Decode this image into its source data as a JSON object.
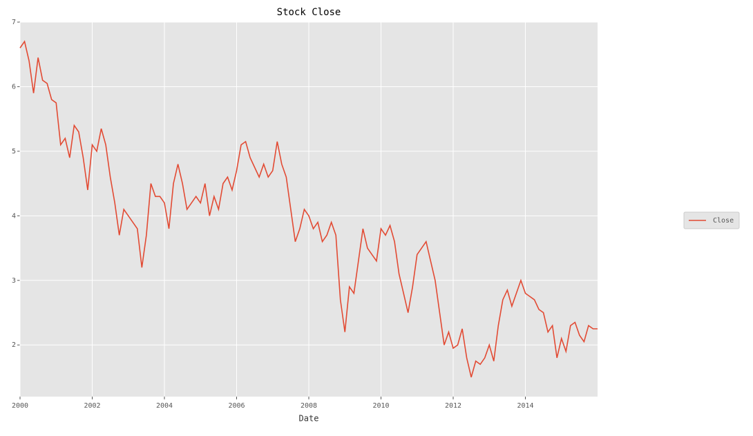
{
  "chart_data": {
    "type": "line",
    "title": "Stock Close",
    "xlabel": "Date",
    "x": [
      2000,
      2000.125,
      2000.25,
      2000.375,
      2000.5,
      2000.625,
      2000.75,
      2000.875,
      2001,
      2001.125,
      2001.25,
      2001.375,
      2001.5,
      2001.625,
      2001.75,
      2001.875,
      2002,
      2002.125,
      2002.25,
      2002.375,
      2002.5,
      2002.625,
      2002.75,
      2002.875,
      2003,
      2003.125,
      2003.25,
      2003.375,
      2003.5,
      2003.625,
      2003.75,
      2003.875,
      2004,
      2004.125,
      2004.25,
      2004.375,
      2004.5,
      2004.625,
      2004.75,
      2004.875,
      2005,
      2005.125,
      2005.25,
      2005.375,
      2005.5,
      2005.625,
      2005.75,
      2005.875,
      2006,
      2006.125,
      2006.25,
      2006.375,
      2006.5,
      2006.625,
      2006.75,
      2006.875,
      2007,
      2007.125,
      2007.25,
      2007.375,
      2007.5,
      2007.625,
      2007.75,
      2007.875,
      2008,
      2008.125,
      2008.25,
      2008.375,
      2008.5,
      2008.625,
      2008.75,
      2008.875,
      2009,
      2009.125,
      2009.25,
      2009.375,
      2009.5,
      2009.625,
      2009.75,
      2009.875,
      2010,
      2010.125,
      2010.25,
      2010.375,
      2010.5,
      2010.625,
      2010.75,
      2010.875,
      2011,
      2011.125,
      2011.25,
      2011.375,
      2011.5,
      2011.625,
      2011.75,
      2011.875,
      2012,
      2012.125,
      2012.25,
      2012.375,
      2012.5,
      2012.625,
      2012.75,
      2012.875,
      2013,
      2013.125,
      2013.25,
      2013.375,
      2013.5,
      2013.625,
      2013.75,
      2013.875,
      2014,
      2014.125,
      2014.25,
      2014.375,
      2014.5,
      2014.625,
      2014.75,
      2014.875,
      2015,
      2015.125,
      2015.25,
      2015.375,
      2015.5,
      2015.625,
      2015.75,
      2015.875,
      2016
    ],
    "series": [
      {
        "name": "Close",
        "color": "#e24a33",
        "values": [
          6.6,
          6.7,
          6.4,
          5.9,
          6.45,
          6.1,
          6.05,
          5.8,
          5.75,
          5.1,
          5.2,
          4.9,
          5.4,
          5.3,
          4.9,
          4.4,
          5.1,
          5.0,
          5.35,
          5.1,
          4.6,
          4.2,
          3.7,
          4.1,
          4.0,
          3.9,
          3.8,
          3.2,
          3.7,
          4.5,
          4.3,
          4.3,
          4.2,
          3.8,
          4.5,
          4.8,
          4.5,
          4.1,
          4.2,
          4.3,
          4.2,
          4.5,
          4.0,
          4.3,
          4.1,
          4.5,
          4.6,
          4.4,
          4.7,
          5.1,
          5.15,
          4.9,
          4.75,
          4.6,
          4.8,
          4.6,
          4.7,
          5.15,
          4.8,
          4.6,
          4.1,
          3.6,
          3.8,
          4.1,
          4.0,
          3.8,
          3.9,
          3.6,
          3.7,
          3.9,
          3.7,
          2.7,
          2.2,
          2.9,
          2.8,
          3.3,
          3.8,
          3.5,
          3.4,
          3.3,
          3.8,
          3.7,
          3.85,
          3.6,
          3.1,
          2.8,
          2.5,
          2.9,
          3.4,
          3.5,
          3.6,
          3.3,
          3.0,
          2.5,
          2.0,
          2.2,
          1.95,
          2.0,
          2.25,
          1.8,
          1.5,
          1.75,
          1.7,
          1.8,
          2.0,
          1.75,
          2.3,
          2.7,
          2.85,
          2.6,
          2.8,
          3.0,
          2.8,
          2.75,
          2.7,
          2.55,
          2.5,
          2.2,
          2.3,
          1.8,
          2.1,
          1.9,
          2.3,
          2.35,
          2.15,
          2.05,
          2.3,
          2.25,
          2.25
        ]
      }
    ],
    "xlim": [
      2000,
      2016
    ],
    "xticks": [
      2000,
      2002,
      2004,
      2006,
      2008,
      2010,
      2012,
      2014
    ],
    "ylim": [
      1.2,
      7
    ],
    "yticks": [
      2,
      3,
      4,
      5,
      6,
      7
    ],
    "grid": true,
    "legend": "right"
  }
}
